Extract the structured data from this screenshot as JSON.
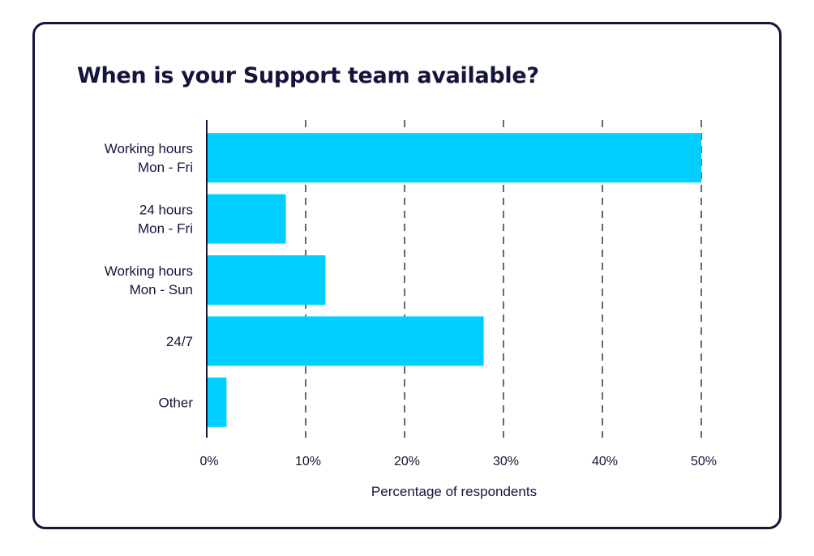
{
  "colors": {
    "bar": "#00cfff",
    "text": "#14143c",
    "border": "#14143c"
  },
  "chart_data": {
    "type": "bar",
    "orientation": "horizontal",
    "title": "When is your Support team available?",
    "xlabel": "Percentage of respondents",
    "ylabel": "",
    "categories": [
      [
        "Working hours",
        "Mon - Fri"
      ],
      [
        "24 hours",
        "Mon - Fri"
      ],
      [
        "Working hours",
        "Mon - Sun"
      ],
      [
        "24/7"
      ],
      [
        "Other"
      ]
    ],
    "values": [
      50,
      8,
      12,
      28,
      2
    ],
    "xlim": [
      0,
      50
    ],
    "ticks": [
      0,
      10,
      20,
      30,
      40,
      50
    ],
    "tick_labels": [
      "0%",
      "10%",
      "20%",
      "30%",
      "40%",
      "50%"
    ],
    "grid": "vertical-dashed"
  }
}
